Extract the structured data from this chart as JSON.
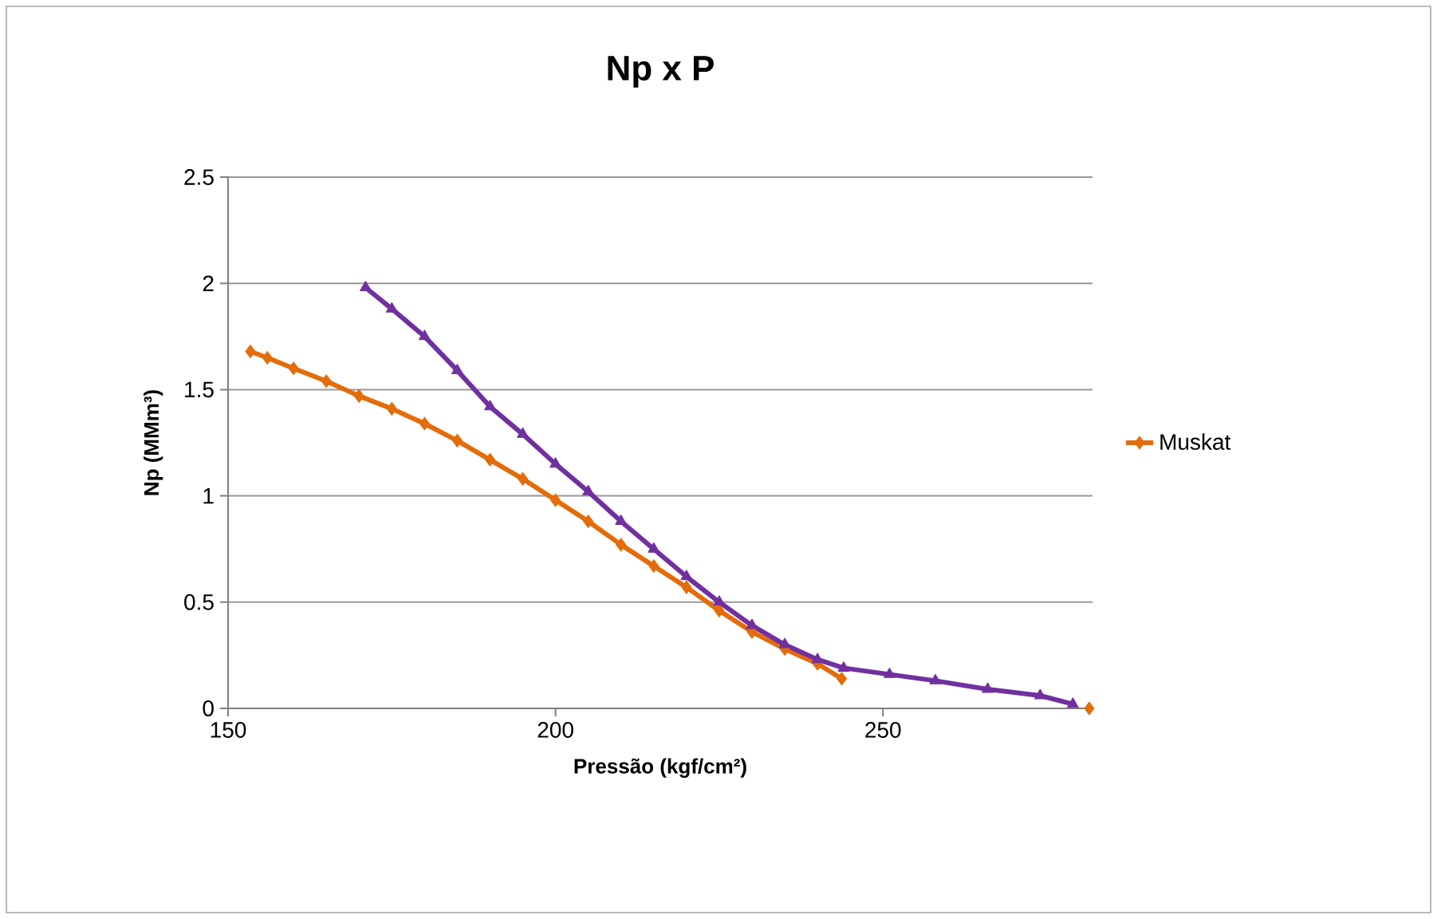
{
  "chart_data": {
    "type": "line",
    "title": "Np x P",
    "xlabel": "Pressão (kgf/cm²)",
    "ylabel": "Np (MMm³)",
    "xlim": [
      150,
      282
    ],
    "xticks": [
      150,
      200,
      250
    ],
    "ylim": [
      0,
      2.5
    ],
    "yticks": [
      0,
      0.5,
      1,
      1.5,
      2,
      2.5
    ],
    "grid": "y",
    "legend": "right",
    "series": [
      {
        "name": "Muskat",
        "color": "#e46c0a",
        "marker": "diamond",
        "x": [
          153.4,
          156,
          160,
          165,
          170,
          175,
          180,
          185,
          190,
          195,
          200,
          205,
          210,
          215,
          220,
          225,
          230,
          235,
          240,
          243.7,
          262,
          281.5
        ],
        "values": [
          1.68,
          1.65,
          1.6,
          1.54,
          1.47,
          1.41,
          1.34,
          1.26,
          1.17,
          1.08,
          0.98,
          0.88,
          0.77,
          0.67,
          0.57,
          0.46,
          0.36,
          0.28,
          0.21,
          0.14,
          null,
          0.0
        ]
      },
      {
        "color": "#7030a0",
        "marker": "triangle",
        "x": [
          171,
          175,
          180,
          185,
          190,
          195,
          200,
          205,
          210,
          215,
          220,
          225,
          230,
          235,
          240,
          244,
          251,
          258,
          266,
          274,
          279
        ],
        "values": [
          1.98,
          1.88,
          1.75,
          1.59,
          1.42,
          1.29,
          1.15,
          1.02,
          0.88,
          0.75,
          0.62,
          0.5,
          0.39,
          0.3,
          0.23,
          0.19,
          0.16,
          0.13,
          0.09,
          0.06,
          0.02
        ]
      }
    ]
  }
}
